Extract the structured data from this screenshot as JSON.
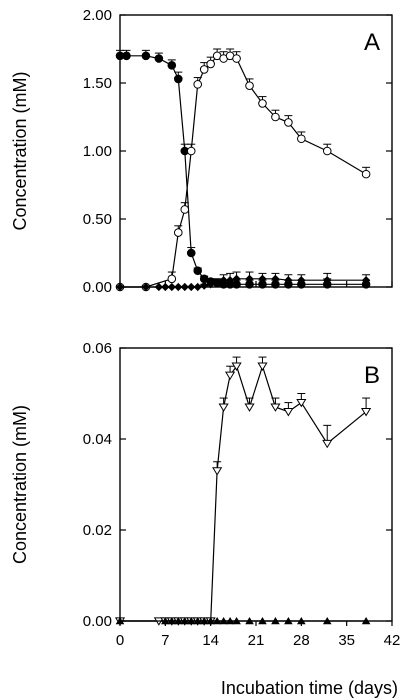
{
  "x_axis_title": "Incubation time (days)",
  "chart_data": [
    {
      "type": "line",
      "panel_label": "A",
      "ylabel": "Concentration (mM)",
      "xlabel": "",
      "xlim": [
        0,
        42
      ],
      "ylim": [
        0,
        2
      ],
      "x_ticks": [
        0,
        7,
        14,
        21,
        28,
        35,
        42
      ],
      "x_tick_labels": [],
      "y_ticks": [
        0,
        0.5,
        1,
        1.5,
        2
      ],
      "y_tick_labels": [
        "0.00",
        "0.50",
        "1.00",
        "1.50",
        "2.00"
      ],
      "grid": false,
      "series": [
        {
          "marker": "filled-circle",
          "x": [
            0,
            1,
            4,
            6,
            8,
            9,
            10,
            11,
            12,
            13,
            14,
            15,
            16,
            17,
            18,
            20,
            22,
            24,
            26,
            28,
            32,
            38
          ],
          "y": [
            1.7,
            1.7,
            1.7,
            1.68,
            1.63,
            1.53,
            1.0,
            0.25,
            0.12,
            0.06,
            0.04,
            0.03,
            0.02,
            0.02,
            0.02,
            0.02,
            0.02,
            0.02,
            0.02,
            0.02,
            0.02,
            0.02
          ],
          "err": [
            0.04,
            0.04,
            0.04,
            0.04,
            0.04,
            0.05,
            0.05,
            0.04,
            0.02,
            0.02,
            0.02,
            0.03,
            0.03,
            0.03,
            0.03,
            0.03,
            0.03,
            0.03,
            0.03,
            0.03,
            0.04,
            0.03
          ]
        },
        {
          "marker": "open-circle",
          "x": [
            0,
            4,
            8,
            9,
            10,
            11,
            12,
            13,
            14,
            15,
            16,
            17,
            18,
            20,
            22,
            24,
            26,
            28,
            32,
            38
          ],
          "y": [
            0.0,
            0.0,
            0.06,
            0.4,
            0.57,
            1.0,
            1.49,
            1.6,
            1.64,
            1.7,
            1.68,
            1.7,
            1.68,
            1.48,
            1.35,
            1.25,
            1.21,
            1.09,
            1.0,
            0.83
          ],
          "err": [
            0.01,
            0.01,
            0.05,
            0.05,
            0.05,
            0.05,
            0.05,
            0.05,
            0.05,
            0.05,
            0.05,
            0.05,
            0.05,
            0.05,
            0.05,
            0.05,
            0.05,
            0.05,
            0.05,
            0.05
          ]
        },
        {
          "marker": "filled-diamond",
          "x": [
            0,
            4,
            6,
            7,
            8,
            9,
            10,
            11,
            12,
            13,
            14,
            15,
            16,
            17,
            18,
            20,
            22,
            24,
            26,
            28,
            32,
            38
          ],
          "y": [
            0.0,
            0.0,
            0.0,
            0.0,
            0.0,
            0.0,
            0.0,
            0.0,
            0.0,
            0.01,
            0.02,
            0.03,
            0.05,
            0.05,
            0.06,
            0.06,
            0.06,
            0.06,
            0.05,
            0.05,
            0.05,
            0.05
          ],
          "err": [
            0,
            0,
            0,
            0,
            0,
            0,
            0,
            0,
            0,
            0.01,
            0.02,
            0.03,
            0.04,
            0.05,
            0.05,
            0.05,
            0.04,
            0.04,
            0.04,
            0.04,
            0.05,
            0.04
          ]
        }
      ]
    },
    {
      "type": "line",
      "panel_label": "B",
      "ylabel": "Concentration (mM)",
      "xlabel": "",
      "xlim": [
        0,
        42
      ],
      "ylim": [
        0,
        0.06
      ],
      "x_ticks": [
        0,
        7,
        14,
        21,
        28,
        35,
        42
      ],
      "x_tick_labels": [
        "0",
        "7",
        "14",
        "21",
        "28",
        "35",
        "42"
      ],
      "y_ticks": [
        0,
        0.02,
        0.04,
        0.06
      ],
      "y_tick_labels": [
        "0.00",
        "0.02",
        "0.04",
        "0.06"
      ],
      "grid": false,
      "series": [
        {
          "marker": "open-triangle-down",
          "x": [
            0,
            6,
            7,
            8,
            9,
            10,
            11,
            12,
            13,
            14,
            15,
            16,
            17,
            18,
            20,
            22,
            24,
            26,
            28,
            32,
            38
          ],
          "y": [
            0.0,
            0.0,
            0.0,
            0.0,
            0.0,
            0.0,
            0.0,
            0.0,
            0.0,
            0.0,
            0.033,
            0.047,
            0.054,
            0.056,
            0.047,
            0.056,
            0.047,
            0.046,
            0.048,
            0.039,
            0.046
          ],
          "err": [
            0,
            0,
            0,
            0,
            0,
            0,
            0,
            0,
            0,
            0,
            0.002,
            0.002,
            0.002,
            0.002,
            0.002,
            0.002,
            0.002,
            0.002,
            0.002,
            0.004,
            0.003
          ]
        },
        {
          "marker": "filled-triangle",
          "x": [
            0,
            7,
            8,
            9,
            10,
            11,
            12,
            13,
            14,
            15,
            16,
            17,
            18,
            20,
            22,
            24,
            26,
            28,
            32,
            38
          ],
          "y": [
            0,
            0,
            0,
            0,
            0,
            0,
            0,
            0,
            0,
            0,
            0,
            0,
            0,
            0,
            0,
            0,
            0,
            0,
            0,
            0
          ],
          "err": []
        }
      ]
    }
  ]
}
